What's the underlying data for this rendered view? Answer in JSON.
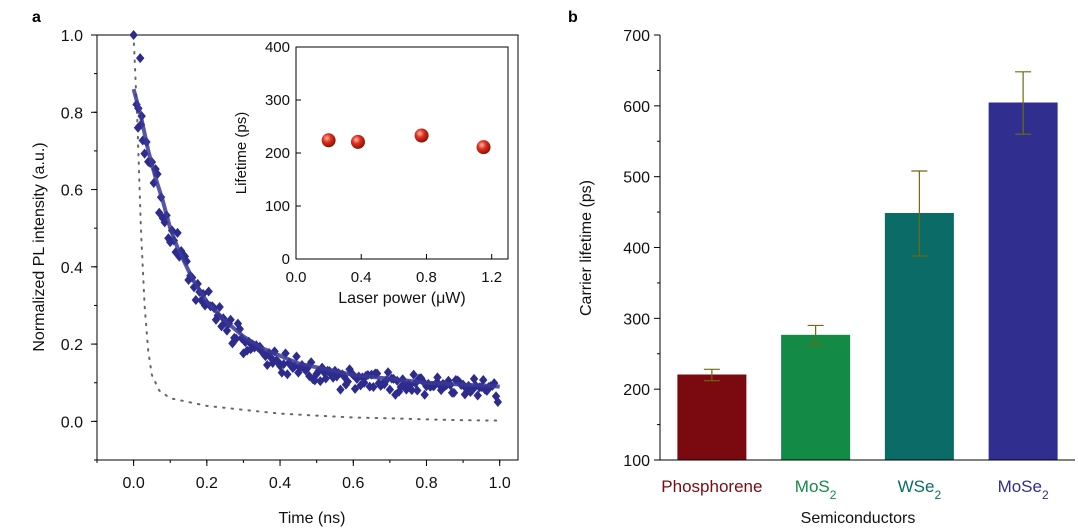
{
  "panels": {
    "a_label": "a",
    "b_label": "b"
  },
  "chart_data": [
    {
      "panel": "a",
      "type": "scatter",
      "xlabel": "Time (ns)",
      "ylabel": "Normalized PL intensity (a.u.)",
      "xlim": [
        -0.1,
        1.05
      ],
      "ylim": [
        -0.1,
        1.0
      ],
      "xticks": [
        "0.0",
        "0.2",
        "0.4",
        "0.6",
        "0.8",
        "1.0"
      ],
      "yticks": [
        "0.0",
        "0.2",
        "0.4",
        "0.6",
        "0.8",
        "1.0"
      ],
      "grid": false,
      "colors": {
        "data": "#2d2b8c",
        "fit": "#3a3896",
        "irf": "#666666"
      },
      "series": [
        {
          "role": "measured",
          "marker": "diamond",
          "x": [
            0.02,
            0.025,
            0.03,
            0.035,
            0.04,
            0.045,
            0.05,
            0.055,
            0.06,
            0.065,
            0.07,
            0.075,
            0.08,
            0.085,
            0.09,
            0.095,
            0.1,
            0.105,
            0.11,
            0.115,
            0.12,
            0.125,
            0.13,
            0.135,
            0.14,
            0.145,
            0.15,
            0.155,
            0.16,
            0.165,
            0.17,
            0.175,
            0.18,
            0.185,
            0.19,
            0.195,
            0.2,
            0.205,
            0.21,
            0.215,
            0.22,
            0.225,
            0.23,
            0.235,
            0.24,
            0.245,
            0.25,
            0.255,
            0.26,
            0.265,
            0.27,
            0.275,
            0.28,
            0.285,
            0.29,
            0.295,
            0.3,
            0.305,
            0.31,
            0.315,
            0.32,
            0.325,
            0.33,
            0.335,
            0.34,
            0.345,
            0.35,
            0.355,
            0.36,
            0.365,
            0.37,
            0.375,
            0.38,
            0.385,
            0.39,
            0.395,
            0.4,
            0.405,
            0.41,
            0.415,
            0.42,
            0.425,
            0.43,
            0.435,
            0.44,
            0.445,
            0.45,
            0.455,
            0.46,
            0.465,
            0.47,
            0.475,
            0.48,
            0.485,
            0.49,
            0.495,
            0.5,
            0.505,
            0.51,
            0.515,
            0.52,
            0.525,
            0.53,
            0.535,
            0.54,
            0.545,
            0.55,
            0.555,
            0.56,
            0.565,
            0.57,
            0.575,
            0.58,
            0.585,
            0.59,
            0.595,
            0.6,
            0.605,
            0.61,
            0.615,
            0.62,
            0.625,
            0.63,
            0.635,
            0.64,
            0.645,
            0.65,
            0.655,
            0.66,
            0.665,
            0.67,
            0.675,
            0.68,
            0.685,
            0.69,
            0.695,
            0.7,
            0.705,
            0.71,
            0.715,
            0.72,
            0.725,
            0.73,
            0.735,
            0.74,
            0.745,
            0.75,
            0.755,
            0.76,
            0.765,
            0.77,
            0.775,
            0.78,
            0.785,
            0.79,
            0.795,
            0.8,
            0.805,
            0.81,
            0.815,
            0.82,
            0.825,
            0.83,
            0.835,
            0.84,
            0.845,
            0.85,
            0.855,
            0.86,
            0.865,
            0.87,
            0.875,
            0.88,
            0.885,
            0.89,
            0.895,
            0.9,
            0.905,
            0.91,
            0.915,
            0.92,
            0.925,
            0.93,
            0.935,
            0.94,
            0.945,
            0.95,
            0.955,
            0.96,
            0.965,
            0.97,
            0.975,
            0.98,
            0.985,
            0.99,
            0.995
          ],
          "y": [
            0.768,
            0.727,
            0.693,
            0.723,
            0.672,
            0.669,
            0.671,
            0.617,
            0.653,
            0.64,
            0.54,
            0.58,
            0.526,
            0.515,
            0.533,
            0.474,
            0.464,
            0.494,
            0.468,
            0.438,
            0.488,
            0.426,
            0.441,
            0.43,
            0.427,
            0.414,
            0.366,
            0.377,
            0.372,
            0.347,
            0.314,
            0.356,
            0.335,
            0.313,
            0.33,
            0.3,
            0.305,
            0.336,
            0.298,
            0.298,
            0.293,
            0.263,
            0.274,
            0.296,
            0.246,
            0.267,
            0.256,
            0.235,
            0.253,
            0.263,
            0.202,
            0.216,
            0.214,
            0.253,
            0.239,
            0.215,
            0.176,
            0.205,
            0.183,
            0.206,
            0.187,
            0.199,
            0.191,
            0.197,
            0.191,
            0.193,
            0.181,
            0.175,
            0.169,
            0.146,
            0.177,
            0.165,
            0.151,
            0.181,
            0.158,
            0.154,
            0.144,
            0.126,
            0.148,
            0.176,
            0.122,
            0.152,
            0.144,
            0.138,
            0.143,
            0.168,
            0.126,
            0.138,
            0.146,
            0.137,
            0.132,
            0.138,
            0.117,
            0.153,
            0.109,
            0.106,
            0.123,
            0.13,
            0.104,
            0.139,
            0.127,
            0.111,
            0.131,
            0.13,
            0.121,
            0.113,
            0.131,
            0.116,
            0.125,
            0.082,
            0.122,
            0.116,
            0.095,
            0.103,
            0.135,
            0.125,
            0.12,
            0.084,
            0.11,
            0.116,
            0.093,
            0.114,
            0.1,
            0.118,
            0.12,
            0.09,
            0.121,
            0.089,
            0.124,
            0.124,
            0.099,
            0.092,
            0.097,
            0.096,
            0.106,
            0.127,
            0.082,
            0.111,
            0.11,
            0.069,
            0.105,
            0.077,
            0.089,
            0.109,
            0.096,
            0.082,
            0.096,
            0.093,
            0.081,
            0.121,
            0.099,
            0.08,
            0.111,
            0.112,
            0.104,
            0.069,
            0.091,
            0.097,
            0.09,
            0.092,
            0.091,
            0.097,
            0.114,
            0.095,
            0.081,
            0.097,
            0.091,
            0.094,
            0.105,
            0.094,
            0.074,
            0.074,
            0.107,
            0.106,
            0.102,
            0.094,
            0.095,
            0.07,
            0.083,
            0.092,
            0.076,
            0.081,
            0.11,
            0.092,
            0.067,
            0.088,
            0.089,
            0.107,
            0.082,
            0.079,
            0.089,
            0.091,
            0.092,
            0.099,
            0.065,
            0.05
          ]
        },
        {
          "role": "fit",
          "style": "solid-line",
          "x": [
            0.0,
            0.02,
            0.04,
            0.06,
            0.08,
            0.1,
            0.12,
            0.14,
            0.16,
            0.18,
            0.2,
            0.25,
            0.3,
            0.35,
            0.4,
            0.45,
            0.5,
            0.55,
            0.6,
            0.65,
            0.7,
            0.75,
            0.8,
            0.85,
            0.9,
            0.95,
            1.0
          ],
          "y": [
            0.86,
            0.79,
            0.7,
            0.63,
            0.57,
            0.5,
            0.45,
            0.41,
            0.37,
            0.34,
            0.31,
            0.26,
            0.22,
            0.19,
            0.17,
            0.15,
            0.14,
            0.13,
            0.12,
            0.115,
            0.11,
            0.105,
            0.1,
            0.098,
            0.095,
            0.093,
            0.09
          ]
        },
        {
          "role": "instrument-response",
          "style": "dotted-line",
          "x": [
            0.0,
            0.01,
            0.02,
            0.03,
            0.04,
            0.05,
            0.07,
            0.1,
            0.15,
            0.2,
            0.3,
            0.4,
            0.5,
            0.6,
            0.7,
            0.8,
            0.9,
            1.0
          ],
          "y": [
            1.0,
            0.78,
            0.5,
            0.3,
            0.18,
            0.12,
            0.08,
            0.06,
            0.05,
            0.04,
            0.03,
            0.02,
            0.015,
            0.01,
            0.008,
            0.005,
            0.003,
            0.002
          ]
        }
      ]
    },
    {
      "panel": "a-inset",
      "type": "scatter",
      "xlabel": "Laser power (μW)",
      "ylabel": "Lifetime (ps)",
      "xlim": [
        0.0,
        1.3
      ],
      "ylim": [
        0,
        400
      ],
      "xticks": [
        "0.0",
        "0.4",
        "0.8",
        "1.2"
      ],
      "yticks": [
        "0",
        "100",
        "200",
        "300",
        "400"
      ],
      "colors": {
        "marker": "#e0301e"
      },
      "x": [
        0.2,
        0.38,
        0.77,
        1.15
      ],
      "y": [
        224,
        221,
        233,
        211
      ]
    },
    {
      "panel": "b",
      "type": "bar",
      "xlabel": "Semiconductors",
      "ylabel": "Carrier lifetime (ps)",
      "ylim": [
        100,
        700
      ],
      "yticks": [
        "100",
        "200",
        "300",
        "400",
        "500",
        "600",
        "700"
      ],
      "grid": false,
      "categories": [
        {
          "main": "Phosphorene",
          "sub": "",
          "color": "#7a0a10"
        },
        {
          "main": "MoS",
          "sub": "2",
          "color": "#138a46"
        },
        {
          "main": "WSe",
          "sub": "2",
          "color": "#0a6b67"
        },
        {
          "main": "MoSe",
          "sub": "2",
          "color": "#302e8f"
        }
      ],
      "values": [
        220,
        276,
        448,
        604
      ],
      "errors": [
        8,
        14,
        60,
        44
      ],
      "colors": {
        "error_bar": "#6b6b10"
      }
    }
  ]
}
